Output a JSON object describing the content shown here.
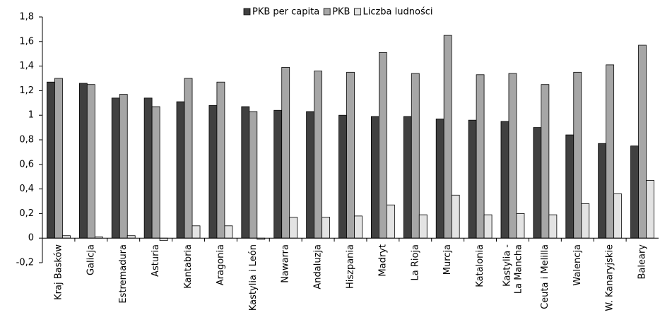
{
  "chart_data": {
    "type": "bar",
    "categories": [
      "Kraj Basków",
      "Galicja",
      "Estremadura",
      "Asturia",
      "Kantabria",
      "Aragonia",
      "Kastylia i León",
      "Nawarra",
      "Andaluzja",
      "Hiszpania",
      "Madryt",
      "La Rioja",
      "Murcja",
      "Katalonia",
      "Kastylia -\nLa Mancha",
      "Ceuta i Melilla",
      "Walencja",
      "W. Kanaryjskie",
      "Baleary"
    ],
    "series": [
      {
        "name": "PKB per capita",
        "color": "#404040",
        "values": [
          1.27,
          1.26,
          1.14,
          1.14,
          1.11,
          1.08,
          1.07,
          1.04,
          1.03,
          1.0,
          0.99,
          0.99,
          0.97,
          0.96,
          0.95,
          0.9,
          0.84,
          0.77,
          0.75
        ]
      },
      {
        "name": "PKB",
        "color": "#a6a6a6",
        "values": [
          1.3,
          1.25,
          1.17,
          1.07,
          1.3,
          1.27,
          1.03,
          1.39,
          1.36,
          1.35,
          1.51,
          1.34,
          1.65,
          1.33,
          1.34,
          1.25,
          1.35,
          1.41,
          1.57
        ]
      },
      {
        "name": "Liczba ludności",
        "color": "#e3e3e3",
        "values": [
          0.02,
          0.01,
          0.02,
          -0.02,
          0.1,
          0.1,
          -0.01,
          0.17,
          0.17,
          0.18,
          0.27,
          0.19,
          0.35,
          0.19,
          0.2,
          0.19,
          0.28,
          0.36,
          0.47
        ]
      }
    ],
    "ylim": [
      -0.2,
      1.8
    ],
    "yticks": [
      {
        "value": -0.2,
        "label": "-0,2"
      },
      0,
      {
        "value": 0.2,
        "label": "0,2"
      },
      {
        "value": 0.4,
        "label": "0,4"
      },
      {
        "value": 0.6,
        "label": "0,6"
      },
      {
        "value": 0.8,
        "label": "0,8"
      },
      1,
      {
        "value": 1.2,
        "label": "1,2"
      },
      {
        "value": 1.4,
        "label": "1,4"
      },
      {
        "value": 1.6,
        "label": "1,6"
      },
      {
        "value": 1.8,
        "label": "1,8"
      }
    ],
    "grid": false,
    "legend": "top"
  }
}
